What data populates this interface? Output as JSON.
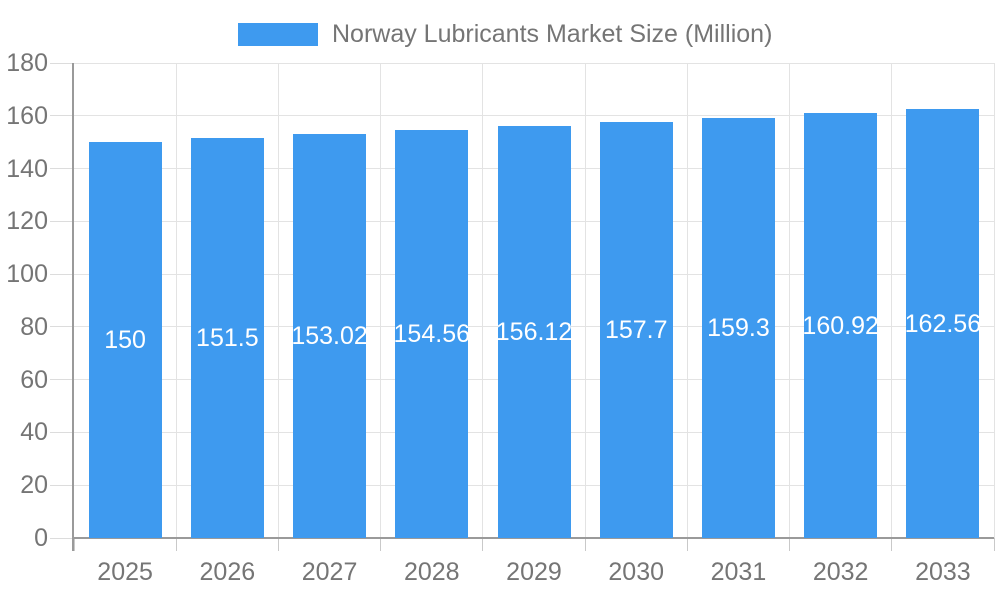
{
  "legend": {
    "label": "Norway Lubricants Market Size (Million)",
    "swatch_color": "#3E9AEF"
  },
  "chart_data": {
    "type": "bar",
    "title": "Norway Lubricants Market Size (Million)",
    "legend_position": "top",
    "categories": [
      "2025",
      "2026",
      "2027",
      "2028",
      "2029",
      "2030",
      "2031",
      "2032",
      "2033"
    ],
    "series": [
      {
        "name": "Norway Lubricants Market Size (Million)",
        "values": [
          150,
          151.5,
          153.02,
          154.56,
          156.12,
          157.7,
          159.3,
          160.92,
          162.56
        ],
        "value_labels": [
          "150",
          "151.5",
          "153.02",
          "154.56",
          "156.12",
          "157.7",
          "159.3",
          "160.92",
          "162.56"
        ],
        "color": "#3E9AEF"
      }
    ],
    "xlabel": "",
    "ylabel": "",
    "ylim": [
      0,
      180
    ],
    "ytick_interval": 20,
    "yticks": [
      "0",
      "20",
      "40",
      "60",
      "80",
      "100",
      "120",
      "140",
      "160",
      "180"
    ],
    "grid": true,
    "value_label_position": "inside-center",
    "value_label_color": "#ffffff"
  },
  "colors": {
    "bar": "#3E9AEF",
    "axis_text": "#757575",
    "axis_line": "#9A9A9A",
    "gridline": "#E3E3E3",
    "background": "#ffffff"
  }
}
